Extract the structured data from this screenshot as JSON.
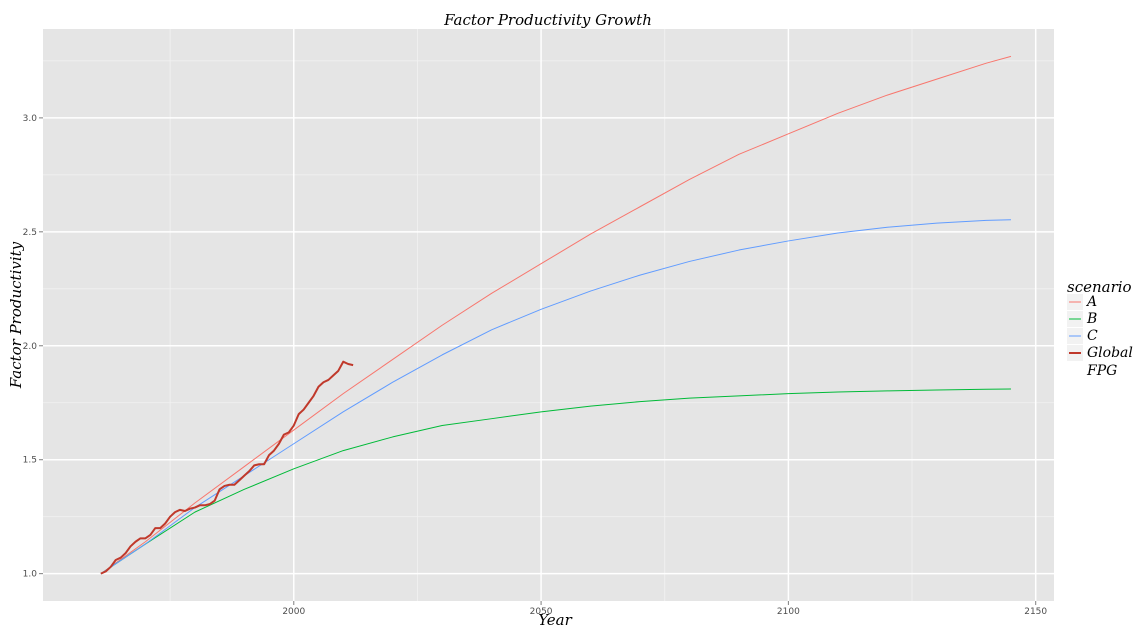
{
  "chart_data": {
    "type": "line",
    "title": "Factor Productivity Growth",
    "xlabel": "Year",
    "ylabel": "Factor Productivity",
    "xlim": [
      1949.3,
      2153.7
    ],
    "ylim": [
      0.88,
      3.39
    ],
    "x_ticks": [
      2000,
      2050,
      2100,
      2150
    ],
    "x_tick_labels": [
      "2000",
      "2050",
      "2100",
      "2150"
    ],
    "y_ticks": [
      1.0,
      1.5,
      2.0,
      2.5,
      3.0
    ],
    "y_tick_labels": [
      "1.0",
      "1.5",
      "2.0",
      "2.5",
      "3.0"
    ],
    "grid": true,
    "legend": {
      "title": "scenario",
      "position": "right"
    },
    "series": [
      {
        "name": "A",
        "color": "#F8766D",
        "width": 1,
        "x": [
          1961,
          1970,
          1980,
          1990,
          2000,
          2010,
          2020,
          2030,
          2040,
          2050,
          2060,
          2070,
          2080,
          2090,
          2100,
          2110,
          2120,
          2130,
          2140,
          2145
        ],
        "y": [
          1.0,
          1.14,
          1.31,
          1.47,
          1.63,
          1.79,
          1.94,
          2.09,
          2.23,
          2.36,
          2.49,
          2.61,
          2.73,
          2.84,
          2.93,
          3.02,
          3.1,
          3.17,
          3.24,
          3.27
        ]
      },
      {
        "name": "B",
        "color": "#00BA38",
        "width": 1,
        "x": [
          1961,
          1970,
          1980,
          1990,
          2000,
          2010,
          2020,
          2030,
          2040,
          2050,
          2060,
          2070,
          2080,
          2090,
          2100,
          2110,
          2120,
          2130,
          2140,
          2145
        ],
        "y": [
          1.0,
          1.13,
          1.27,
          1.37,
          1.46,
          1.54,
          1.6,
          1.65,
          1.68,
          1.71,
          1.735,
          1.755,
          1.77,
          1.78,
          1.79,
          1.797,
          1.802,
          1.806,
          1.809,
          1.81
        ]
      },
      {
        "name": "C",
        "color": "#619CFF",
        "width": 1,
        "x": [
          1961,
          1970,
          1980,
          1990,
          2000,
          2010,
          2020,
          2030,
          2040,
          2050,
          2060,
          2070,
          2080,
          2090,
          2100,
          2110,
          2120,
          2130,
          2140,
          2145
        ],
        "y": [
          1.0,
          1.13,
          1.29,
          1.43,
          1.57,
          1.71,
          1.84,
          1.96,
          2.07,
          2.16,
          2.24,
          2.31,
          2.37,
          2.42,
          2.46,
          2.495,
          2.52,
          2.538,
          2.55,
          2.553
        ]
      },
      {
        "name": "Global FPG",
        "color": "#C0392B",
        "width": 2,
        "x": [
          1961,
          1962,
          1963,
          1964,
          1965,
          1966,
          1967,
          1968,
          1969,
          1970,
          1971,
          1972,
          1973,
          1974,
          1975,
          1976,
          1977,
          1978,
          1979,
          1980,
          1981,
          1982,
          1983,
          1984,
          1985,
          1986,
          1987,
          1988,
          1989,
          1990,
          1991,
          1992,
          1993,
          1994,
          1995,
          1996,
          1997,
          1998,
          1999,
          2000,
          2001,
          2002,
          2003,
          2004,
          2005,
          2006,
          2007,
          2008,
          2009,
          2010,
          2011,
          2012
        ],
        "y": [
          1.0,
          1.01,
          1.03,
          1.06,
          1.07,
          1.09,
          1.12,
          1.14,
          1.155,
          1.155,
          1.17,
          1.2,
          1.2,
          1.22,
          1.25,
          1.27,
          1.28,
          1.275,
          1.285,
          1.29,
          1.3,
          1.3,
          1.305,
          1.32,
          1.37,
          1.385,
          1.39,
          1.39,
          1.41,
          1.43,
          1.45,
          1.475,
          1.48,
          1.48,
          1.52,
          1.54,
          1.57,
          1.61,
          1.62,
          1.65,
          1.7,
          1.72,
          1.75,
          1.78,
          1.82,
          1.84,
          1.85,
          1.87,
          1.89,
          1.93,
          1.92,
          1.915
        ]
      }
    ]
  }
}
